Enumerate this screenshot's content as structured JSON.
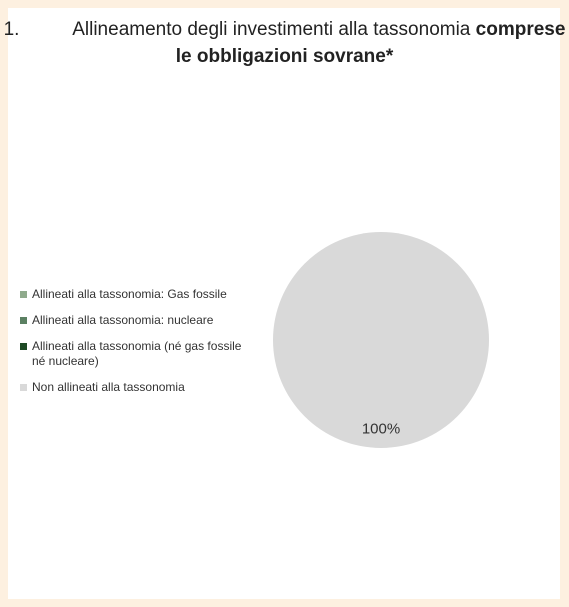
{
  "chart_data": {
    "type": "pie",
    "title": {
      "number": "1.",
      "text": "Allineamento degli investimenti alla tassonomia",
      "emphasis": "comprese le obbligazioni sovrane*"
    },
    "categories": [
      "Allineati alla tassonomia: Gas fossile",
      "Allineati alla tassonomia: nucleare",
      "Allineati alla tassonomia (né gas fossile né nucleare)",
      "Non allineati alla tassonomia"
    ],
    "values": [
      0,
      0,
      0,
      100
    ],
    "value_labels": [
      null,
      null,
      null,
      "100%"
    ],
    "colors": [
      "#8faa8c",
      "#5b8062",
      "#1e4a24",
      "#d9d9d9"
    ],
    "legend": "left"
  }
}
